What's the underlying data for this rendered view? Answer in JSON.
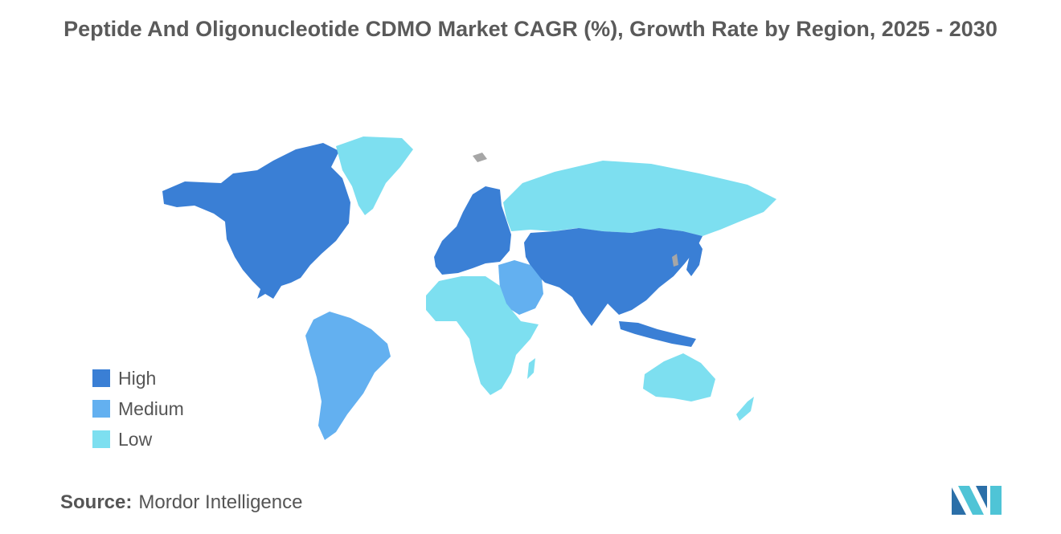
{
  "title": "Peptide And Oligonucleotide CDMO Market CAGR (%), Growth Rate by Region, 2025 - 2030",
  "legend": {
    "items": [
      {
        "label": "High",
        "color": "#3a7fd5"
      },
      {
        "label": "Medium",
        "color": "#63b0f0"
      },
      {
        "label": "Low",
        "color": "#7ddff0"
      }
    ]
  },
  "regions": {
    "north_america": "High",
    "europe": "High",
    "asia": "High",
    "south_america": "Medium",
    "middle_east": "Medium",
    "africa": "Low",
    "russia": "Low",
    "greenland": "Low",
    "australia": "Low"
  },
  "source": {
    "label": "Source:",
    "name": "Mordor Intelligence"
  },
  "colors": {
    "no_data": "#a6a6a6",
    "title": "#5a5a5a",
    "text": "#555555"
  },
  "icons": {
    "logo": "mordor-intelligence-logo"
  }
}
